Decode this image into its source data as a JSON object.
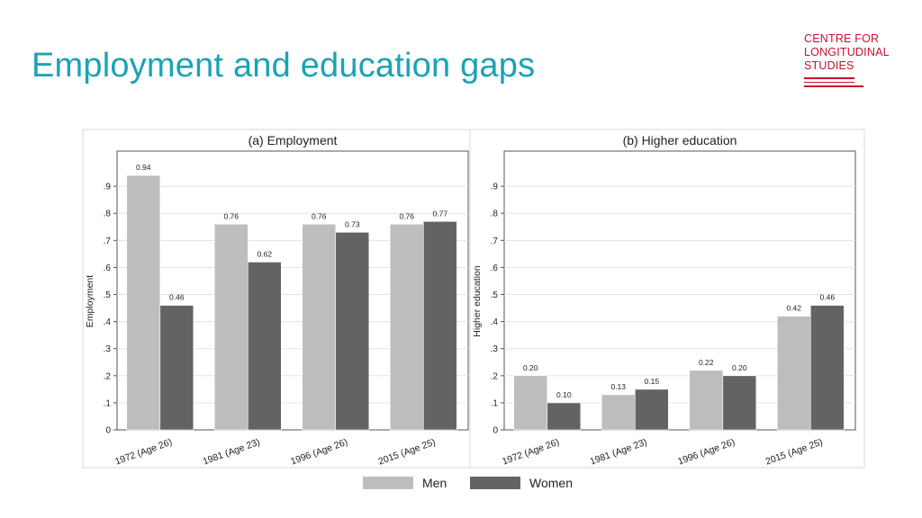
{
  "slide": {
    "title": "Employment and education gaps"
  },
  "logo": {
    "lines": [
      "CENTRE FOR",
      "LONGITUDINAL",
      "STUDIES"
    ],
    "color": "#c8102e"
  },
  "colors": {
    "title": "#1ba3b5",
    "men": "#bdbdbd",
    "women": "#636363"
  },
  "legend": {
    "items": [
      "Men",
      "Women"
    ]
  },
  "chart_data": [
    {
      "type": "bar",
      "title": "(a) Employment",
      "ylabel": "Employment",
      "categories": [
        "1972 (Age 26)",
        "1981 (Age 23)",
        "1996 (Age 26)",
        "2015 (Age 25)"
      ],
      "series": [
        {
          "name": "Men",
          "values": [
            0.94,
            0.76,
            0.76,
            0.76
          ],
          "labels": [
            "0.94",
            "0.76",
            "0.76",
            "0.76"
          ]
        },
        {
          "name": "Women",
          "values": [
            0.46,
            0.62,
            0.73,
            0.77
          ],
          "labels": [
            "0.46",
            "0.62",
            "0.73",
            "0.77"
          ]
        }
      ],
      "yticks": [
        "0",
        ".1",
        ".2",
        ".3",
        ".4",
        ".5",
        ".6",
        ".7",
        ".8",
        ".9"
      ],
      "ylim": [
        0,
        1.03
      ],
      "grid": true
    },
    {
      "type": "bar",
      "title": "(b) Higher education",
      "ylabel": "Higher education",
      "categories": [
        "1972 (Age 26)",
        "1981 (Age 23)",
        "1996 (Age 26)",
        "2015 (Age 25)"
      ],
      "series": [
        {
          "name": "Men",
          "values": [
            0.2,
            0.13,
            0.22,
            0.42
          ],
          "labels": [
            "0.20",
            "0.13",
            "0.22",
            "0.42"
          ]
        },
        {
          "name": "Women",
          "values": [
            0.1,
            0.15,
            0.2,
            0.46
          ],
          "labels": [
            "0.10",
            "0.15",
            "0.20",
            "0.46"
          ]
        }
      ],
      "yticks": [
        "0",
        ".1",
        ".2",
        ".3",
        ".4",
        ".5",
        ".6",
        ".7",
        ".8",
        ".9"
      ],
      "ylim": [
        0,
        1.03
      ],
      "grid": true
    }
  ]
}
